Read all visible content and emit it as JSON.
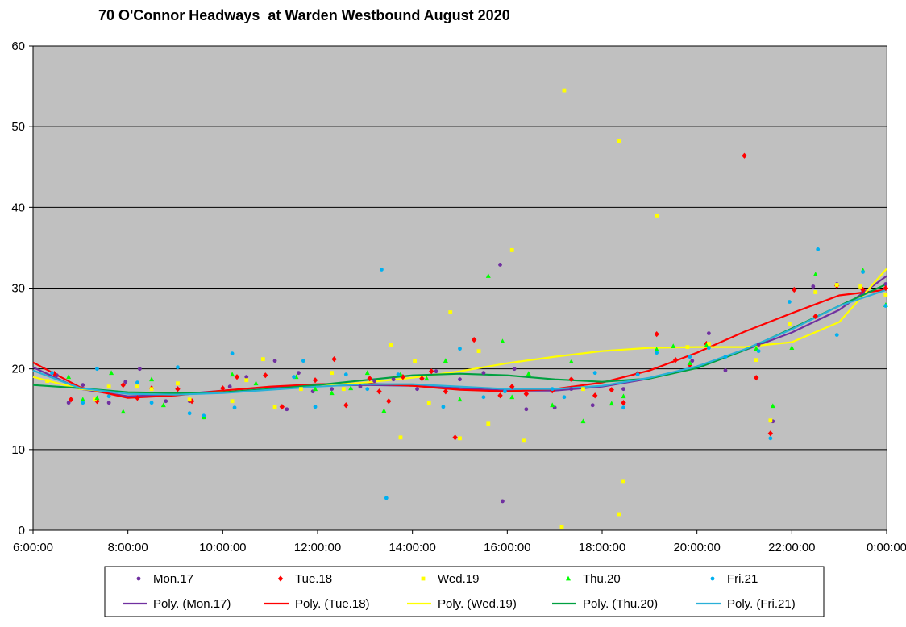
{
  "chart_data": {
    "type": "scatter",
    "title": "70 O'Connor Headways  at Warden Westbound August 2020",
    "xlabel": "",
    "ylabel": "",
    "xlim": [
      6,
      24
    ],
    "ylim": [
      0,
      60
    ],
    "x_ticks": [
      "6:00:00",
      "8:00:00",
      "10:00:00",
      "12:00:00",
      "14:00:00",
      "16:00:00",
      "18:00:00",
      "20:00:00",
      "22:00:00",
      "0:00:00"
    ],
    "y_ticks": [
      "0",
      "10",
      "20",
      "30",
      "40",
      "50",
      "60"
    ],
    "grid": "horizontal",
    "plot_background": "#c0c0c0",
    "legend_position": "bottom",
    "series": [
      {
        "name": "Mon.17",
        "marker": "circle",
        "color": "#7030a0",
        "points": [
          [
            6.5,
            19.2
          ],
          [
            6.75,
            15.8
          ],
          [
            7.05,
            18
          ],
          [
            7.6,
            15.8
          ],
          [
            7.95,
            18.4
          ],
          [
            8.25,
            20
          ],
          [
            8.8,
            16
          ],
          [
            9.3,
            16
          ],
          [
            9.6,
            14
          ],
          [
            10.15,
            17.8
          ],
          [
            10.5,
            19
          ],
          [
            11.1,
            21
          ],
          [
            11.35,
            15
          ],
          [
            11.6,
            19.5
          ],
          [
            11.9,
            17.2
          ],
          [
            12.3,
            17.5
          ],
          [
            12.9,
            17.8
          ],
          [
            13.2,
            18.5
          ],
          [
            13.6,
            18.7
          ],
          [
            14.1,
            17.5
          ],
          [
            14.5,
            19.7
          ],
          [
            15.0,
            18.7
          ],
          [
            15.5,
            19.5
          ],
          [
            15.85,
            32.9
          ],
          [
            15.9,
            3.6
          ],
          [
            16.15,
            20
          ],
          [
            16.4,
            15
          ],
          [
            17.0,
            15.2
          ],
          [
            17.35,
            17.5
          ],
          [
            17.8,
            15.5
          ],
          [
            18.45,
            17.5
          ],
          [
            19.9,
            21
          ],
          [
            20.25,
            24.4
          ],
          [
            20.6,
            19.8
          ],
          [
            21.3,
            23
          ],
          [
            21.6,
            13.5
          ],
          [
            22.45,
            30.2
          ],
          [
            22.95,
            30.5
          ],
          [
            23.5,
            29.5
          ],
          [
            23.98,
            30.5
          ]
        ]
      },
      {
        "name": "Tue.18",
        "marker": "diamond",
        "color": "#ff0000",
        "points": [
          [
            6.45,
            19.4
          ],
          [
            6.8,
            16.2
          ],
          [
            7.35,
            16
          ],
          [
            7.9,
            18
          ],
          [
            8.2,
            16.4
          ],
          [
            8.5,
            17.6
          ],
          [
            9.05,
            17.5
          ],
          [
            9.35,
            16
          ],
          [
            10.0,
            17.6
          ],
          [
            10.3,
            19
          ],
          [
            10.9,
            19.2
          ],
          [
            11.25,
            15.3
          ],
          [
            11.95,
            18.6
          ],
          [
            12.35,
            21.2
          ],
          [
            12.6,
            15.5
          ],
          [
            13.1,
            18.8
          ],
          [
            13.3,
            17.2
          ],
          [
            13.5,
            16
          ],
          [
            13.8,
            19
          ],
          [
            14.2,
            18.8
          ],
          [
            14.4,
            19.7
          ],
          [
            14.7,
            17.2
          ],
          [
            14.9,
            11.5
          ],
          [
            15.3,
            23.6
          ],
          [
            15.85,
            16.7
          ],
          [
            16.1,
            17.8
          ],
          [
            16.4,
            16.9
          ],
          [
            16.95,
            17.3
          ],
          [
            17.35,
            18.7
          ],
          [
            17.85,
            16.7
          ],
          [
            18.2,
            17.4
          ],
          [
            18.45,
            15.8
          ],
          [
            18.75,
            19.4
          ],
          [
            19.15,
            24.3
          ],
          [
            19.55,
            21.1
          ],
          [
            19.85,
            20.5
          ],
          [
            20.2,
            23.1
          ],
          [
            21.0,
            46.4
          ],
          [
            21.25,
            18.9
          ],
          [
            21.55,
            12
          ],
          [
            22.05,
            29.8
          ],
          [
            22.5,
            26.5
          ],
          [
            22.95,
            30.3
          ],
          [
            23.5,
            29.8
          ],
          [
            23.98,
            30
          ]
        ]
      },
      {
        "name": "Wed.19",
        "marker": "square",
        "color": "#ffff00",
        "points": [
          [
            6.3,
            18.5
          ],
          [
            7.3,
            16.2
          ],
          [
            7.6,
            17.8
          ],
          [
            8.2,
            17.8
          ],
          [
            8.5,
            17.5
          ],
          [
            9.05,
            18.2
          ],
          [
            9.3,
            16.2
          ],
          [
            10.2,
            16
          ],
          [
            10.5,
            18.6
          ],
          [
            10.85,
            21.2
          ],
          [
            11.1,
            15.3
          ],
          [
            11.65,
            17.5
          ],
          [
            12.3,
            19.5
          ],
          [
            12.55,
            17.5
          ],
          [
            13.55,
            23
          ],
          [
            13.75,
            11.5
          ],
          [
            14.05,
            21
          ],
          [
            14.35,
            15.8
          ],
          [
            14.8,
            27
          ],
          [
            15.0,
            11.4
          ],
          [
            15.4,
            22.2
          ],
          [
            15.6,
            13.2
          ],
          [
            16.1,
            34.7
          ],
          [
            16.35,
            11.1
          ],
          [
            17.15,
            0.4
          ],
          [
            17.2,
            54.5
          ],
          [
            17.6,
            17.5
          ],
          [
            18.35,
            48.2
          ],
          [
            18.35,
            2
          ],
          [
            18.45,
            6.1
          ],
          [
            19.15,
            39
          ],
          [
            19.8,
            22.7
          ],
          [
            20.25,
            23.1
          ],
          [
            21.25,
            21.1
          ],
          [
            21.55,
            13.6
          ],
          [
            21.95,
            25.6
          ],
          [
            22.5,
            29.5
          ],
          [
            22.95,
            30.4
          ],
          [
            23.45,
            30.2
          ],
          [
            23.98,
            29.2
          ]
        ]
      },
      {
        "name": "Thu.20",
        "marker": "triangle",
        "color": "#00ff00",
        "points": [
          [
            6.75,
            19
          ],
          [
            7.05,
            16.2
          ],
          [
            7.35,
            16.4
          ],
          [
            7.65,
            19.5
          ],
          [
            7.9,
            14.7
          ],
          [
            8.5,
            18.7
          ],
          [
            8.75,
            15.5
          ],
          [
            9.6,
            14
          ],
          [
            10.2,
            19.3
          ],
          [
            10.7,
            18.2
          ],
          [
            11.55,
            19
          ],
          [
            11.95,
            17.5
          ],
          [
            12.3,
            17
          ],
          [
            12.7,
            17.6
          ],
          [
            13.05,
            19.5
          ],
          [
            13.4,
            14.8
          ],
          [
            13.75,
            19.3
          ],
          [
            14.3,
            18.8
          ],
          [
            14.7,
            21
          ],
          [
            15.0,
            16.2
          ],
          [
            15.6,
            31.5
          ],
          [
            15.9,
            23.4
          ],
          [
            16.1,
            16.5
          ],
          [
            16.45,
            19.4
          ],
          [
            16.95,
            15.5
          ],
          [
            17.35,
            20.9
          ],
          [
            17.6,
            13.5
          ],
          [
            18.2,
            15.7
          ],
          [
            18.45,
            16.6
          ],
          [
            19.15,
            22.4
          ],
          [
            19.5,
            22.8
          ],
          [
            19.85,
            20.7
          ],
          [
            20.2,
            22.9
          ],
          [
            21.25,
            22.5
          ],
          [
            21.6,
            15.4
          ],
          [
            22.0,
            22.6
          ],
          [
            22.5,
            31.7
          ],
          [
            23.5,
            32.2
          ],
          [
            23.98,
            27.9
          ]
        ]
      },
      {
        "name": "Fri.21",
        "marker": "circle",
        "color": "#00b0f0",
        "points": [
          [
            6.4,
            19.5
          ],
          [
            7.05,
            15.8
          ],
          [
            7.35,
            20
          ],
          [
            7.6,
            16.6
          ],
          [
            8.2,
            18.3
          ],
          [
            8.5,
            15.8
          ],
          [
            9.05,
            20.2
          ],
          [
            9.3,
            14.5
          ],
          [
            9.6,
            14.2
          ],
          [
            10.2,
            21.9
          ],
          [
            10.25,
            15.2
          ],
          [
            11.5,
            19
          ],
          [
            11.7,
            21
          ],
          [
            11.95,
            15.3
          ],
          [
            12.6,
            19.3
          ],
          [
            13.05,
            17.5
          ],
          [
            13.35,
            32.3
          ],
          [
            13.45,
            4
          ],
          [
            13.7,
            19.3
          ],
          [
            14.65,
            15.3
          ],
          [
            15.0,
            22.5
          ],
          [
            15.5,
            16.5
          ],
          [
            15.95,
            17.2
          ],
          [
            16.95,
            17.5
          ],
          [
            17.2,
            16.5
          ],
          [
            17.85,
            19.5
          ],
          [
            18.45,
            15.2
          ],
          [
            18.75,
            19.3
          ],
          [
            19.15,
            22
          ],
          [
            19.85,
            21.5
          ],
          [
            20.25,
            22.6
          ],
          [
            20.6,
            21.5
          ],
          [
            21.3,
            22.2
          ],
          [
            21.55,
            11.4
          ],
          [
            21.95,
            28.3
          ],
          [
            22.55,
            34.8
          ],
          [
            22.95,
            24.2
          ],
          [
            23.5,
            32
          ],
          [
            23.98,
            27.8
          ]
        ]
      }
    ],
    "trendlines": [
      {
        "name": "Poly. (Mon.17)",
        "color": "#7030a0",
        "points": [
          [
            6,
            20.2
          ],
          [
            7,
            17.5
          ],
          [
            8,
            16.6
          ],
          [
            9,
            16.8
          ],
          [
            10,
            17.3
          ],
          [
            11,
            17.7
          ],
          [
            12,
            17.9
          ],
          [
            13,
            18
          ],
          [
            14,
            17.9
          ],
          [
            15,
            17.6
          ],
          [
            16,
            17.3
          ],
          [
            17,
            17.3
          ],
          [
            18,
            17.8
          ],
          [
            19,
            18.8
          ],
          [
            20,
            20.3
          ],
          [
            21,
            22.3
          ],
          [
            22,
            24.5
          ],
          [
            23,
            27.3
          ],
          [
            24,
            31.5
          ]
        ]
      },
      {
        "name": "Poly. (Tue.18)",
        "color": "#ff0000",
        "points": [
          [
            6,
            20.8
          ],
          [
            7,
            17.7
          ],
          [
            8,
            16.4
          ],
          [
            9,
            16.7
          ],
          [
            10,
            17.3
          ],
          [
            11,
            17.8
          ],
          [
            12,
            18.1
          ],
          [
            13,
            18.2
          ],
          [
            14,
            17.9
          ],
          [
            15,
            17.4
          ],
          [
            16,
            17.2
          ],
          [
            17,
            17.5
          ],
          [
            18,
            18.3
          ],
          [
            19,
            19.8
          ],
          [
            20,
            22
          ],
          [
            21,
            24.6
          ],
          [
            22,
            26.9
          ],
          [
            23,
            29.1
          ],
          [
            24,
            29.8
          ]
        ]
      },
      {
        "name": "Poly. (Wed.19)",
        "color": "#ffff00",
        "points": [
          [
            6,
            19
          ],
          [
            7,
            17.5
          ],
          [
            8,
            17
          ],
          [
            9,
            16.9
          ],
          [
            10,
            17.1
          ],
          [
            11,
            17.5
          ],
          [
            12,
            17.9
          ],
          [
            13,
            18.3
          ],
          [
            14,
            18.9
          ],
          [
            15,
            19.7
          ],
          [
            16,
            20.7
          ],
          [
            17,
            21.5
          ],
          [
            18,
            22.2
          ],
          [
            19,
            22.6
          ],
          [
            20,
            22.7
          ],
          [
            21,
            22.7
          ],
          [
            22,
            23.3
          ],
          [
            23,
            25.8
          ],
          [
            24,
            32.4
          ]
        ]
      },
      {
        "name": "Poly. (Thu.20)",
        "color": "#00a040",
        "points": [
          [
            6,
            18
          ],
          [
            7,
            17.6
          ],
          [
            8,
            17.1
          ],
          [
            9,
            17
          ],
          [
            10,
            17.1
          ],
          [
            11,
            17.5
          ],
          [
            12,
            18
          ],
          [
            13,
            18.6
          ],
          [
            14,
            19.2
          ],
          [
            15,
            19.4
          ],
          [
            16,
            19.2
          ],
          [
            17,
            18.7
          ],
          [
            18,
            18.4
          ],
          [
            19,
            18.8
          ],
          [
            20,
            20.1
          ],
          [
            21,
            22.3
          ],
          [
            22,
            25
          ],
          [
            23,
            27.8
          ],
          [
            24,
            30.5
          ]
        ]
      },
      {
        "name": "Poly. (Fri.21)",
        "color": "#2ab0d8",
        "points": [
          [
            6,
            19.8
          ],
          [
            7,
            17.6
          ],
          [
            8,
            16.9
          ],
          [
            9,
            16.8
          ],
          [
            10,
            17
          ],
          [
            11,
            17.4
          ],
          [
            12,
            17.8
          ],
          [
            13,
            18.1
          ],
          [
            14,
            18.1
          ],
          [
            15,
            17.8
          ],
          [
            16,
            17.5
          ],
          [
            17,
            17.5
          ],
          [
            18,
            17.9
          ],
          [
            19,
            18.9
          ],
          [
            20,
            20.3
          ],
          [
            21,
            22.4
          ],
          [
            22,
            24.9
          ],
          [
            23,
            27.8
          ],
          [
            24,
            29.8
          ]
        ]
      }
    ]
  }
}
